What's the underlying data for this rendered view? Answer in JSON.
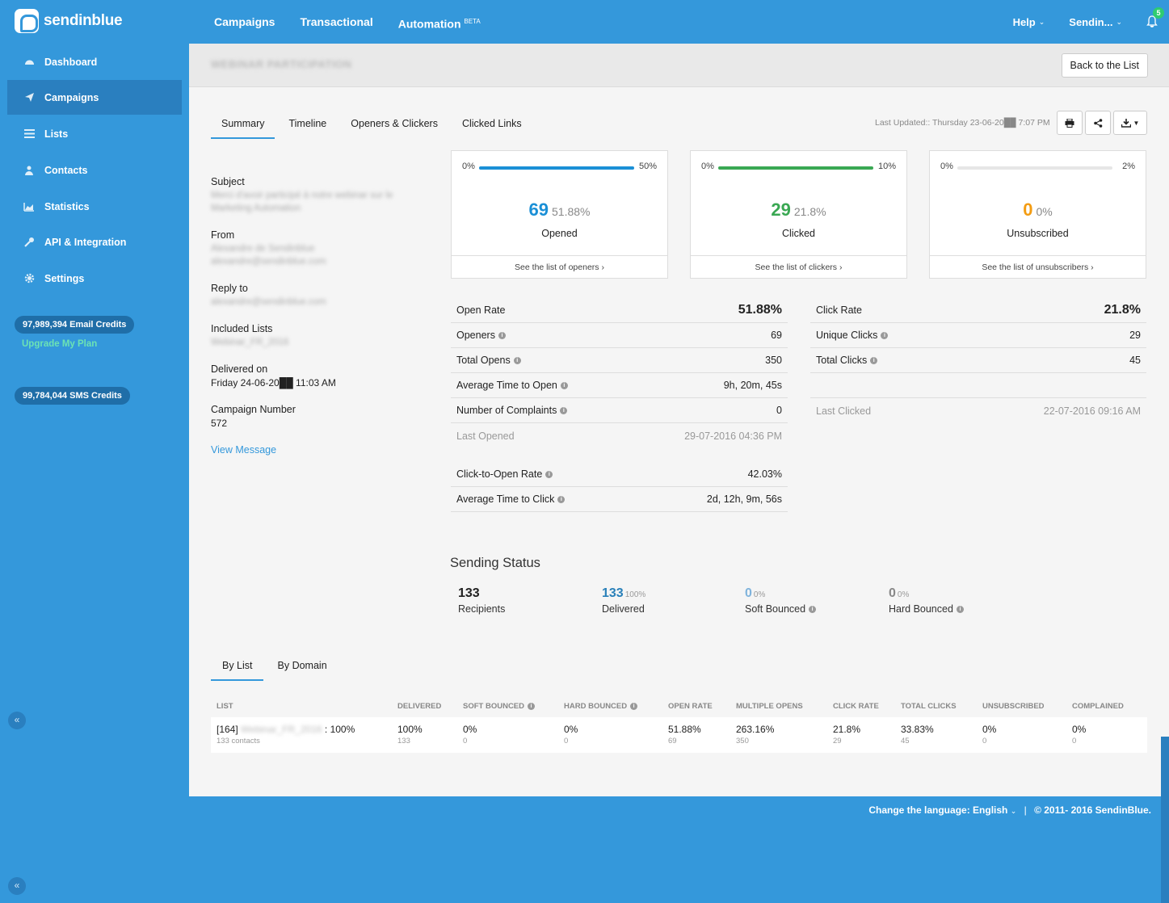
{
  "brand": {
    "name": "sendinblue"
  },
  "topnav": [
    {
      "label": "Campaigns"
    },
    {
      "label": "Transactional"
    },
    {
      "label": "Automation",
      "sup": "BETA"
    }
  ],
  "topright": {
    "help": "Help",
    "account": "Sendin...",
    "notif_count": "5"
  },
  "sidebar": {
    "items": [
      {
        "label": "Dashboard",
        "icon": "dashboard-icon"
      },
      {
        "label": "Campaigns",
        "icon": "paper-plane-icon"
      },
      {
        "label": "Lists",
        "icon": "list-icon"
      },
      {
        "label": "Contacts",
        "icon": "users-icon"
      },
      {
        "label": "Statistics",
        "icon": "chart-icon"
      },
      {
        "label": "API & Integration",
        "icon": "wrench-icon"
      },
      {
        "label": "Settings",
        "icon": "gear-icon"
      }
    ],
    "email_credits": "97,989,394 Email Credits",
    "upgrade": "Upgrade My Plan",
    "sms_credits": "99,784,044 SMS Credits",
    "collapse": "«"
  },
  "header": {
    "campaign_title": "WEBINAR PARTICIPATION",
    "back_label": "Back to the List"
  },
  "tabs": [
    "Summary",
    "Timeline",
    "Openers & Clickers",
    "Clicked Links"
  ],
  "last_updated": "Last Updated:: Thursday 23-06-20██ 7:07 PM",
  "info": {
    "subject_label": "Subject",
    "subject_value": "Merci d'avoir participé à notre webinar sur le Marketing Automation",
    "from_label": "From",
    "from_value": "Alexandre de Sendinblue alexandre@sendinblue.com",
    "reply_label": "Reply to",
    "reply_value": "alexandre@sendinblue.com",
    "lists_label": "Included Lists",
    "lists_value": "Webinar_FR_2016",
    "delivered_label": "Delivered on",
    "delivered_value": "Friday 24-06-20██ 11:03 AM",
    "number_label": "Campaign Number",
    "number_value": "572",
    "view_message": "View Message"
  },
  "cards": [
    {
      "left": "0%",
      "right": "50%",
      "num": "69",
      "pct": "51.88%",
      "label": "Opened",
      "link": "See the list of openers ›",
      "color": "#1a8fd6",
      "fill": 1.0
    },
    {
      "left": "0%",
      "right": "10%",
      "num": "29",
      "pct": "21.8%",
      "label": "Clicked",
      "link": "See the list of clickers ›",
      "color": "#3aa853",
      "fill": 1.0
    },
    {
      "left": "0%",
      "right": "2%",
      "num": "0",
      "pct": "0%",
      "label": "Unsubscribed",
      "link": "See the list of unsubscribers ›",
      "color": "#f39c12",
      "fill": 0.0
    }
  ],
  "open_metrics": {
    "head": {
      "label": "Open Rate",
      "value": "51.88%"
    },
    "rows": [
      {
        "label": "Openers",
        "value": "69"
      },
      {
        "label": "Total Opens",
        "value": "350"
      },
      {
        "label": "Average Time to Open",
        "value": "9h, 20m, 45s"
      },
      {
        "label": "Number of Complaints",
        "value": "0"
      }
    ],
    "last": {
      "label": "Last Opened",
      "value": "29-07-2016 04:36 PM"
    },
    "extra": [
      {
        "label": "Click-to-Open Rate",
        "value": "42.03%"
      },
      {
        "label": "Average Time to Click",
        "value": "2d, 12h, 9m, 56s"
      }
    ]
  },
  "click_metrics": {
    "head": {
      "label": "Click Rate",
      "value": "21.8%"
    },
    "rows": [
      {
        "label": "Unique Clicks",
        "value": "29"
      },
      {
        "label": "Total Clicks",
        "value": "45"
      }
    ],
    "last": {
      "label": "Last Clicked",
      "value": "22-07-2016 09:16 AM"
    }
  },
  "sending_status": {
    "title": "Sending Status",
    "items": [
      {
        "num": "133",
        "pct": "",
        "label": "Recipients",
        "color": "#222"
      },
      {
        "num": "133",
        "pct": "100%",
        "label": "Delivered",
        "color": "#2980b9"
      },
      {
        "num": "0",
        "pct": "0%",
        "label": "Soft Bounced",
        "color": "#7fb3dc"
      },
      {
        "num": "0",
        "pct": "0%",
        "label": "Hard Bounced",
        "color": "#888"
      }
    ]
  },
  "bottom_tabs": [
    "By List",
    "By Domain"
  ],
  "list_table": {
    "headers": [
      "LIST",
      "DELIVERED",
      "SOFT BOUNCED",
      "HARD BOUNCED",
      "OPEN RATE",
      "MULTIPLE OPENS",
      "CLICK RATE",
      "TOTAL CLICKS",
      "UNSUBSCRIBED",
      "COMPLAINED"
    ],
    "row": {
      "list_id": "[164]",
      "list_name": "Webinar_FR_2016",
      "list_pct": ": 100%",
      "list_sub": "133 contacts",
      "cells": [
        {
          "main": "100%",
          "sub": "133"
        },
        {
          "main": "0%",
          "sub": "0"
        },
        {
          "main": "0%",
          "sub": "0"
        },
        {
          "main": "51.88%",
          "sub": "69"
        },
        {
          "main": "263.16%",
          "sub": "350"
        },
        {
          "main": "21.8%",
          "sub": "29"
        },
        {
          "main": "33.83%",
          "sub": "45"
        },
        {
          "main": "0%",
          "sub": "0"
        },
        {
          "main": "0%",
          "sub": "0"
        }
      ]
    }
  },
  "footer": {
    "lang_label": "Change the language:",
    "lang": "English",
    "copyright": "© 2011- 2016 SendinBlue."
  }
}
